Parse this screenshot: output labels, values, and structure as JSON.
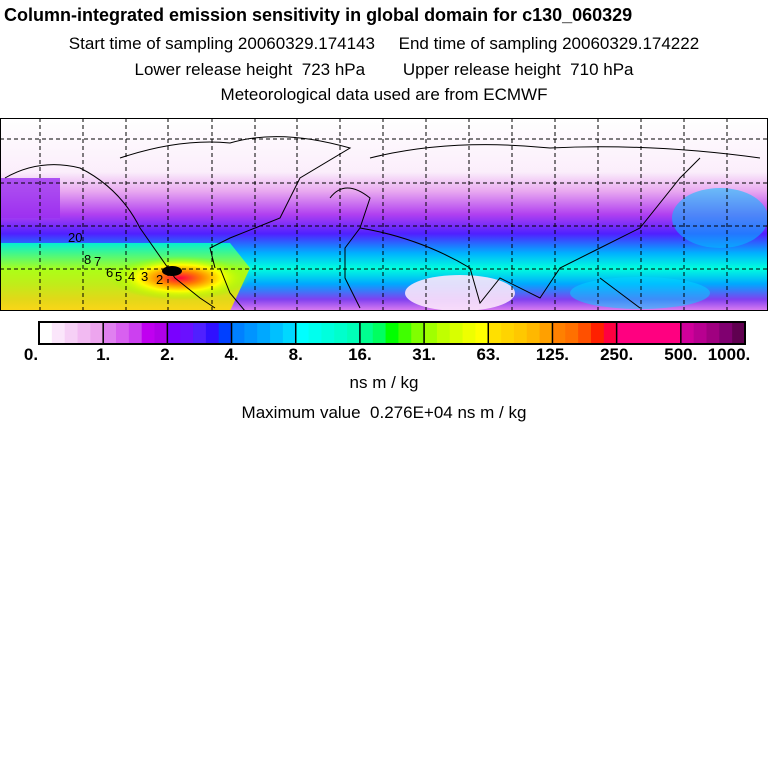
{
  "header": {
    "title": "Column-integrated emission sensitivity in global domain for c130_060329",
    "line2": "Start time of sampling 20060329.174143     End time of sampling 20060329.174222",
    "line3": "Lower release height  723 hPa        Upper release height  710 hPa",
    "line4": "Meteorological data used are from ECMWF"
  },
  "map": {
    "trajectory_labels": [
      "20",
      "8",
      "7",
      "6",
      "5",
      "4",
      "3",
      "2"
    ]
  },
  "colorbar": {
    "tick_labels": [
      "0.",
      "1.",
      "2.",
      "4.",
      "8.",
      "16.",
      "31.",
      "63.",
      "125.",
      "250.",
      "500.",
      "1000."
    ],
    "colors": [
      "#ffffff",
      "#fbe6fb",
      "#f6d0f6",
      "#f2baf2",
      "#eda5ee",
      "#e080f0",
      "#d860f0",
      "#cc40f0",
      "#c000f0",
      "#b000e8",
      "#7a00ff",
      "#6a10ff",
      "#5020ff",
      "#3010ff",
      "#0040ff",
      "#0080ff",
      "#0094ff",
      "#00a8ff",
      "#00c0ff",
      "#00d8ff",
      "#00ffff",
      "#00ffee",
      "#00ffdd",
      "#00ffcc",
      "#00ffb8",
      "#00ff90",
      "#00ff60",
      "#00ff00",
      "#40ff00",
      "#80ff00",
      "#a0ff00",
      "#c0ff00",
      "#d8ff00",
      "#eeff00",
      "#ffff00",
      "#ffe000",
      "#ffd400",
      "#ffc800",
      "#ffb800",
      "#ffa000",
      "#ff8000",
      "#ff7000",
      "#ff5000",
      "#ff2000",
      "#ff0040",
      "#ff0080",
      "#ff0080",
      "#ff0080",
      "#ff0080",
      "#ff0080",
      "#d0009a",
      "#b80090",
      "#a00080",
      "#800070",
      "#600050"
    ],
    "units": "ns m / kg",
    "max_value": "Maximum value  0.276E+04 ns m / kg"
  }
}
